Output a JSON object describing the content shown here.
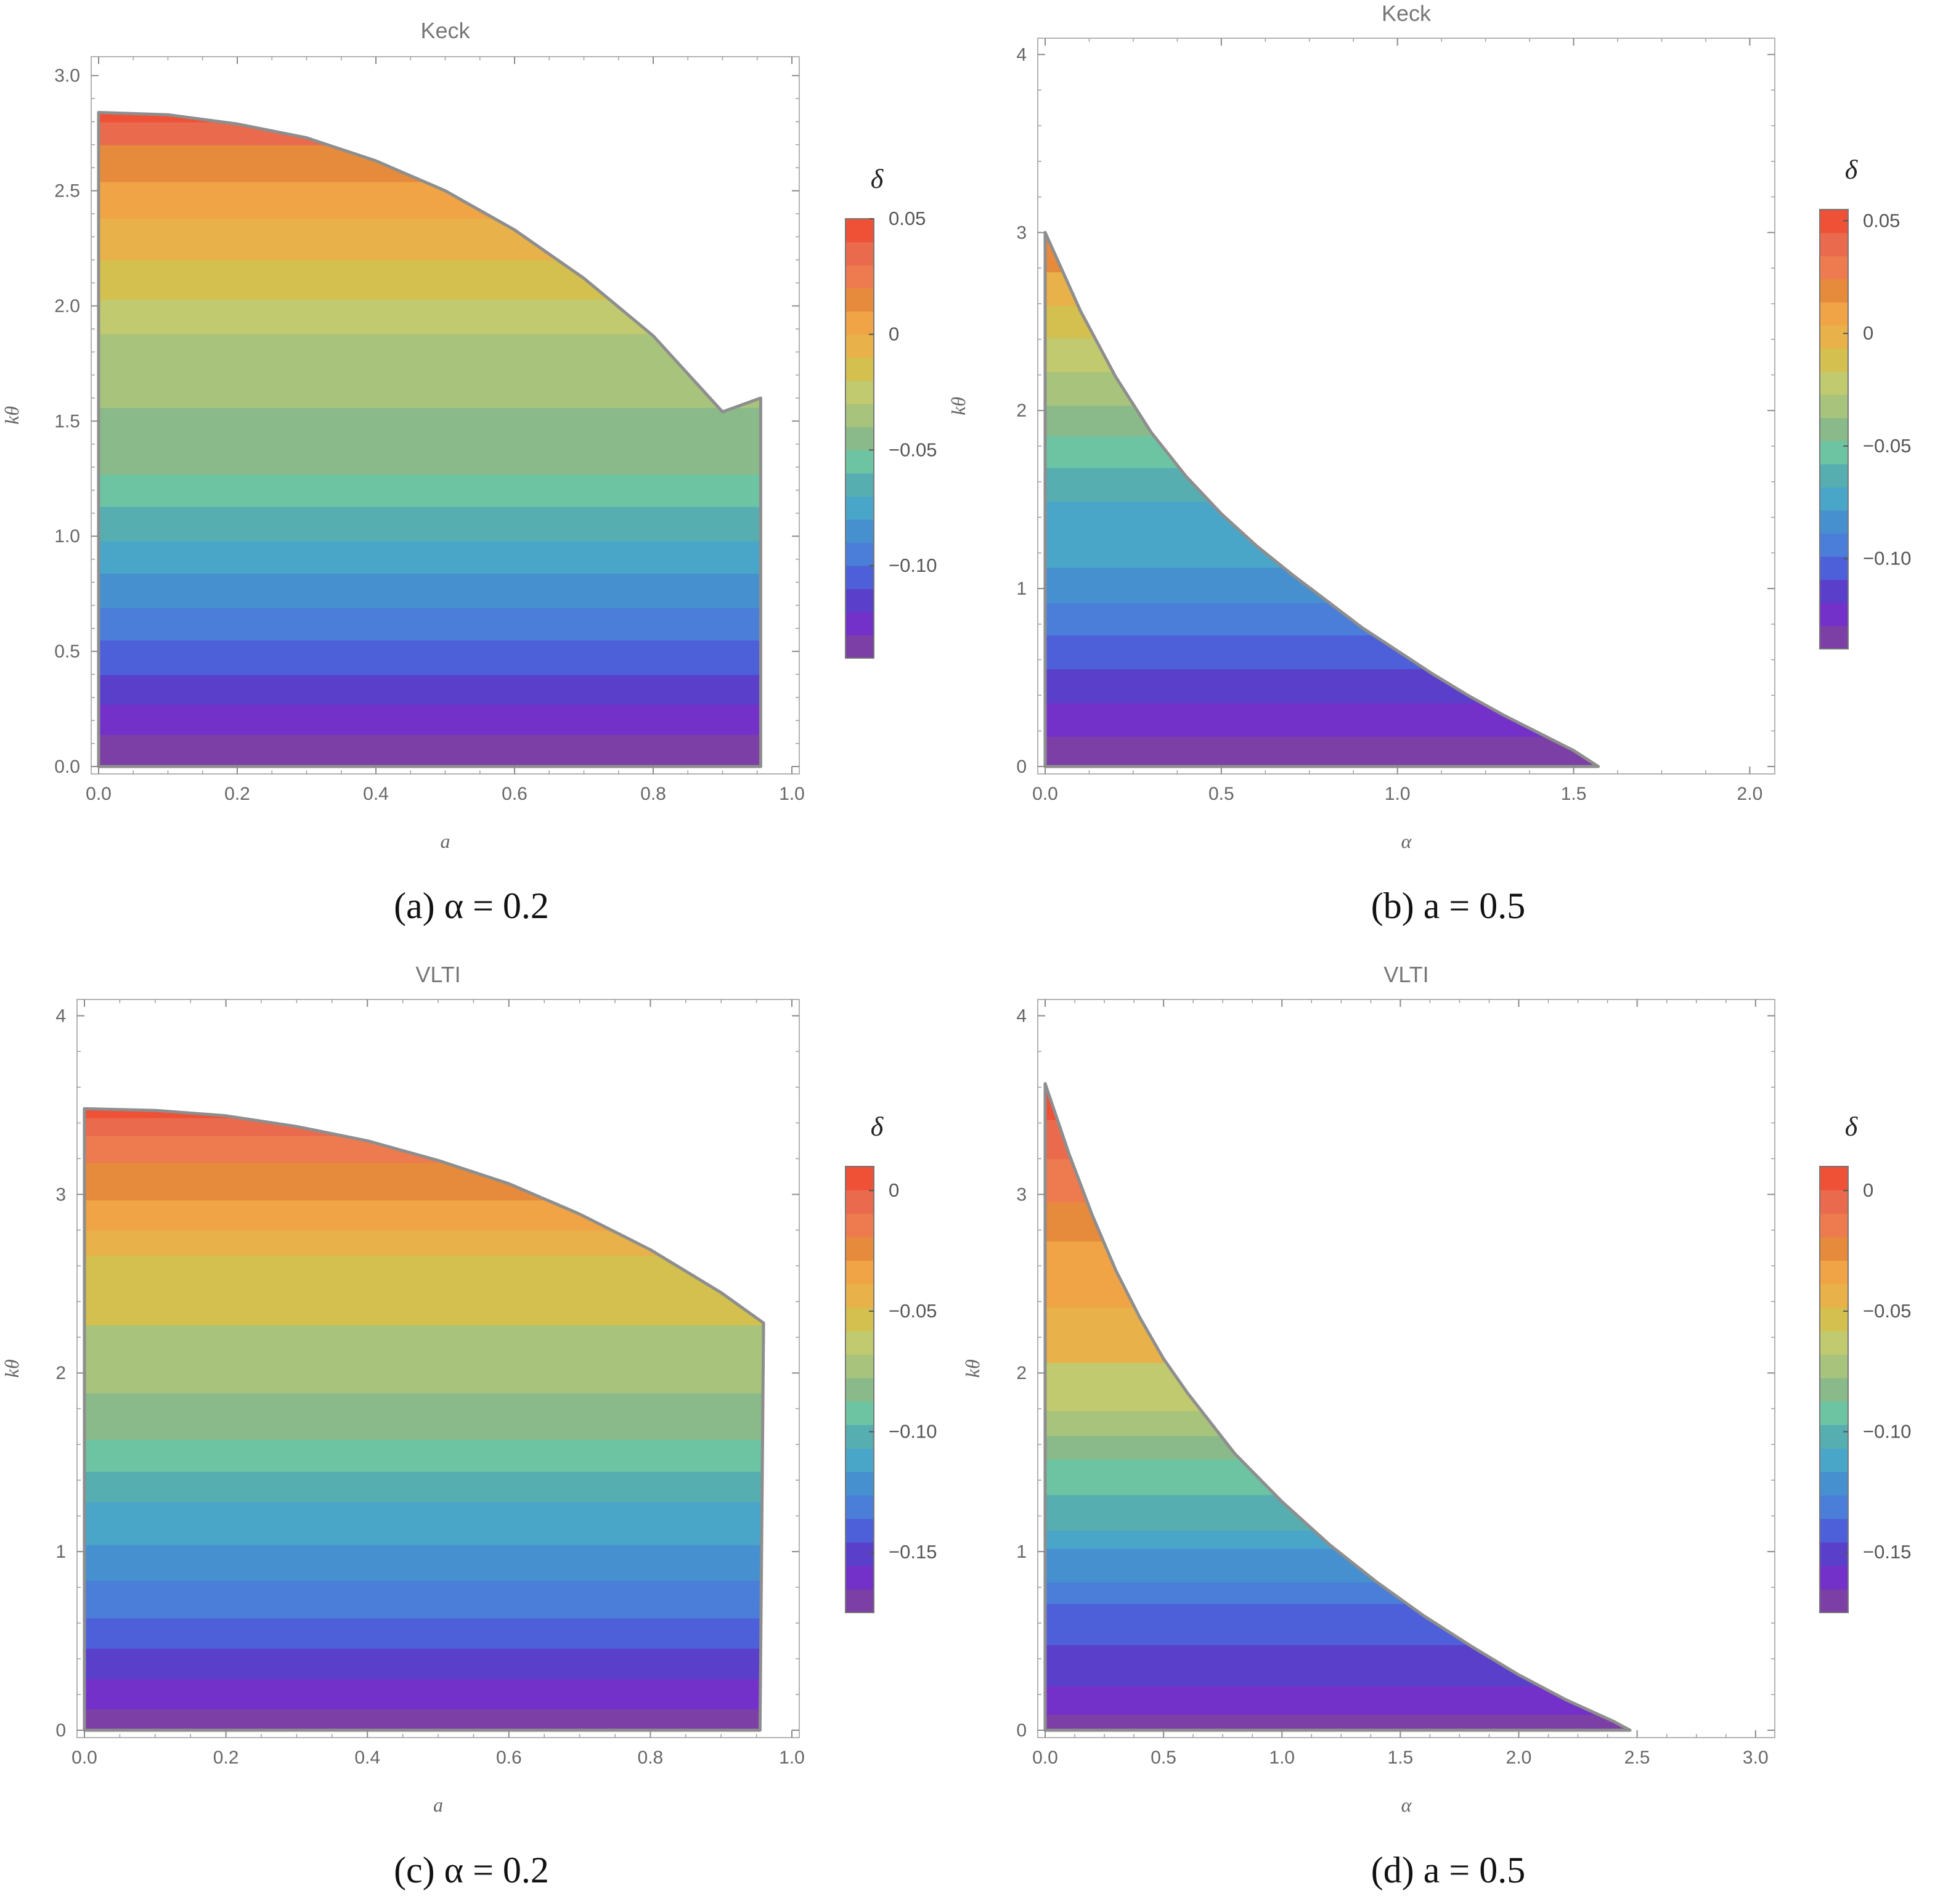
{
  "figure": {
    "panels": [
      {
        "title": "Keck",
        "caption": "(a) α = 0.2",
        "xlabel": "a",
        "ylabel": "kθ",
        "xlim": [
          0,
          1.0
        ],
        "ylim": [
          0,
          3.05
        ],
        "xticks": [
          "0.0",
          "0.2",
          "0.4",
          "0.6",
          "0.8",
          "1.0"
        ],
        "xtick_values": [
          0,
          0.2,
          0.4,
          0.6,
          0.8,
          1.0
        ],
        "yticks": [
          "0.0",
          "0.5",
          "1.0",
          "1.5",
          "2.0",
          "2.5",
          "3.0"
        ],
        "ytick_values": [
          0,
          0.5,
          1.0,
          1.5,
          2.0,
          2.5,
          3.0
        ],
        "colorbar_label": "δ",
        "colorbar_range": [
          -0.14,
          0.05
        ],
        "colorbar_ticks": [
          "0.05",
          "0",
          "−0.05",
          "−0.10"
        ],
        "colorbar_tick_values": [
          0.05,
          0,
          -0.05,
          -0.1
        ]
      },
      {
        "title": "Keck",
        "caption": "(b) a = 0.5",
        "xlabel": "α",
        "ylabel": "kθ",
        "xlim": [
          0,
          2.05
        ],
        "ylim": [
          0,
          4.05
        ],
        "xticks": [
          "0.0",
          "0.5",
          "1.0",
          "1.5",
          "2.0"
        ],
        "xtick_values": [
          0,
          0.5,
          1.0,
          1.5,
          2.0
        ],
        "yticks": [
          "0",
          "1",
          "2",
          "3",
          "4"
        ],
        "ytick_values": [
          0,
          1,
          2,
          3,
          4
        ],
        "colorbar_label": "δ",
        "colorbar_range": [
          -0.14,
          0.055
        ],
        "colorbar_ticks": [
          "0.05",
          "0",
          "−0.05",
          "−0.10"
        ],
        "colorbar_tick_values": [
          0.05,
          0,
          -0.05,
          -0.1
        ]
      },
      {
        "title": "VLTI",
        "caption": "(c) α = 0.2",
        "xlabel": "a",
        "ylabel": "kθ",
        "xlim": [
          0,
          1.0
        ],
        "ylim": [
          0,
          4.05
        ],
        "xticks": [
          "0.0",
          "0.2",
          "0.4",
          "0.6",
          "0.8",
          "1.0"
        ],
        "xtick_values": [
          0,
          0.2,
          0.4,
          0.6,
          0.8,
          1.0
        ],
        "yticks": [
          "0",
          "1",
          "2",
          "3",
          "4"
        ],
        "ytick_values": [
          0,
          1,
          2,
          3,
          4
        ],
        "colorbar_label": "δ",
        "colorbar_range": [
          -0.175,
          0.01
        ],
        "colorbar_ticks": [
          "0",
          "−0.05",
          "−0.10",
          "−0.15"
        ],
        "colorbar_tick_values": [
          0,
          -0.05,
          -0.1,
          -0.15
        ]
      },
      {
        "title": "VLTI",
        "caption": "(d) a = 0.5",
        "xlabel": "α",
        "ylabel": "kθ",
        "xlim": [
          0,
          3.05
        ],
        "ylim": [
          0,
          4.05
        ],
        "xticks": [
          "0.0",
          "0.5",
          "1.0",
          "1.5",
          "2.0",
          "2.5",
          "3.0"
        ],
        "xtick_values": [
          0,
          0.5,
          1.0,
          1.5,
          2.0,
          2.5,
          3.0
        ],
        "yticks": [
          "0",
          "1",
          "2",
          "3",
          "4"
        ],
        "ytick_values": [
          0,
          1,
          2,
          3,
          4
        ],
        "colorbar_label": "δ",
        "colorbar_range": [
          -0.175,
          0.01
        ],
        "colorbar_ticks": [
          "0",
          "−0.05",
          "−0.10",
          "−0.15"
        ],
        "colorbar_tick_values": [
          0,
          -0.05,
          -0.1,
          -0.15
        ]
      }
    ]
  },
  "chart_data": [
    {
      "type": "heatmap",
      "title": "Keck",
      "xlabel": "a",
      "ylabel": "kθ",
      "xlim": [
        0,
        1.0
      ],
      "ylim": [
        0,
        3.05
      ],
      "grid": false,
      "legend": "colorbar right",
      "colorbar_label": "δ",
      "value_range": [
        -0.14,
        0.05
      ],
      "band_count": 18,
      "region_boundary": {
        "x": [
          0.0,
          0.0,
          0.1,
          0.2,
          0.3,
          0.4,
          0.5,
          0.6,
          0.7,
          0.8,
          0.9,
          0.955,
          0.955
        ],
        "y": [
          0.0,
          2.84,
          2.83,
          2.79,
          2.73,
          2.63,
          2.5,
          2.33,
          2.12,
          1.87,
          1.54,
          1.6,
          0.0
        ]
      },
      "contour_levels": {
        "y": [
          0.0,
          0.14,
          0.27,
          0.4,
          0.55,
          0.69,
          0.84,
          0.98,
          1.13,
          1.27,
          1.42,
          1.56,
          1.88,
          2.03,
          2.2,
          2.38,
          2.54,
          2.7,
          2.8
        ],
        "delta": [
          -0.14,
          -0.13,
          -0.12,
          -0.11,
          -0.1,
          -0.09,
          -0.08,
          -0.07,
          -0.06,
          -0.05,
          -0.04,
          -0.03,
          -0.02,
          -0.01,
          0.0,
          0.01,
          0.02,
          0.04,
          0.05
        ]
      }
    },
    {
      "type": "heatmap",
      "title": "Keck",
      "xlabel": "α",
      "ylabel": "kθ",
      "xlim": [
        0,
        2.05
      ],
      "ylim": [
        0,
        4.05
      ],
      "grid": false,
      "legend": "colorbar right",
      "colorbar_label": "δ",
      "value_range": [
        -0.14,
        0.055
      ],
      "band_count": 18,
      "region_boundary": {
        "x": [
          0.0,
          0.0,
          0.1,
          0.2,
          0.3,
          0.4,
          0.5,
          0.6,
          0.7,
          0.8,
          0.9,
          1.0,
          1.1,
          1.2,
          1.3,
          1.4,
          1.5,
          1.57
        ],
        "y": [
          0.0,
          3.0,
          2.56,
          2.19,
          1.88,
          1.63,
          1.42,
          1.24,
          1.08,
          0.93,
          0.78,
          0.65,
          0.52,
          0.4,
          0.29,
          0.19,
          0.09,
          0.0
        ]
      },
      "contour_levels": {
        "y": [
          0.0,
          0.17,
          0.36,
          0.55,
          0.74,
          0.92,
          1.12,
          1.31,
          1.49,
          1.68,
          1.86,
          2.03,
          2.22,
          2.41,
          2.59,
          2.78,
          2.98
        ],
        "delta": [
          -0.14,
          -0.13,
          -0.12,
          -0.11,
          -0.1,
          -0.09,
          -0.08,
          -0.07,
          -0.06,
          -0.05,
          -0.04,
          -0.03,
          -0.02,
          -0.01,
          0.0,
          0.02,
          0.05
        ]
      }
    },
    {
      "type": "heatmap",
      "title": "VLTI",
      "xlabel": "a",
      "ylabel": "kθ",
      "xlim": [
        0,
        1.0
      ],
      "ylim": [
        0,
        4.05
      ],
      "grid": false,
      "legend": "colorbar right",
      "colorbar_label": "δ",
      "value_range": [
        -0.175,
        0.01
      ],
      "band_count": 18,
      "region_boundary": {
        "x": [
          0.0,
          0.0,
          0.1,
          0.2,
          0.3,
          0.4,
          0.5,
          0.6,
          0.7,
          0.8,
          0.9,
          0.96,
          0.955
        ],
        "y": [
          0.0,
          3.48,
          3.47,
          3.44,
          3.38,
          3.3,
          3.19,
          3.06,
          2.89,
          2.69,
          2.45,
          2.28,
          0.0
        ]
      },
      "contour_levels": {
        "y": [
          0.0,
          0.12,
          0.29,
          0.46,
          0.63,
          0.84,
          1.04,
          1.28,
          1.45,
          1.63,
          1.89,
          2.27,
          2.66,
          2.8,
          2.97,
          3.18,
          3.33,
          3.43
        ],
        "delta": [
          -0.175,
          -0.165,
          -0.155,
          -0.145,
          -0.135,
          -0.125,
          -0.115,
          -0.105,
          -0.095,
          -0.085,
          -0.075,
          -0.055,
          -0.045,
          -0.035,
          -0.025,
          -0.015,
          -0.005,
          0.005
        ]
      }
    },
    {
      "type": "heatmap",
      "title": "VLTI",
      "xlabel": "α",
      "ylabel": "kθ",
      "xlim": [
        0,
        3.05
      ],
      "ylim": [
        0,
        4.05
      ],
      "grid": false,
      "legend": "colorbar right",
      "colorbar_label": "δ",
      "value_range": [
        -0.175,
        0.01
      ],
      "band_count": 18,
      "region_boundary": {
        "x": [
          0.0,
          0.0,
          0.1,
          0.2,
          0.3,
          0.4,
          0.5,
          0.6,
          0.8,
          1.0,
          1.2,
          1.4,
          1.6,
          1.8,
          2.0,
          2.2,
          2.4,
          2.47
        ],
        "y": [
          0.0,
          3.62,
          3.23,
          2.88,
          2.57,
          2.31,
          2.08,
          1.89,
          1.55,
          1.28,
          1.04,
          0.83,
          0.64,
          0.47,
          0.31,
          0.17,
          0.05,
          0.0
        ]
      },
      "contour_levels": {
        "y": [
          0.0,
          0.09,
          0.25,
          0.48,
          0.71,
          0.83,
          1.02,
          1.12,
          1.32,
          1.52,
          1.65,
          1.79,
          2.06,
          2.37,
          2.74,
          2.96,
          3.2,
          3.42
        ],
        "delta": [
          -0.175,
          -0.165,
          -0.155,
          -0.145,
          -0.135,
          -0.125,
          -0.115,
          -0.105,
          -0.095,
          -0.085,
          -0.075,
          -0.065,
          -0.045,
          -0.035,
          -0.025,
          -0.015,
          -0.005,
          0.005
        ]
      }
    }
  ],
  "palette": [
    "#7b3fa6",
    "#7431c9",
    "#5a3fcb",
    "#4e60d9",
    "#4a7ed8",
    "#4690cf",
    "#4aa6c8",
    "#57aeb1",
    "#6cc4a3",
    "#8aba8a",
    "#a8c47c",
    "#c2ca6f",
    "#d3c04e",
    "#e8b14a",
    "#f0a445",
    "#e68a3c",
    "#ee7a4f",
    "#ea6a4e",
    "#ef5137"
  ]
}
